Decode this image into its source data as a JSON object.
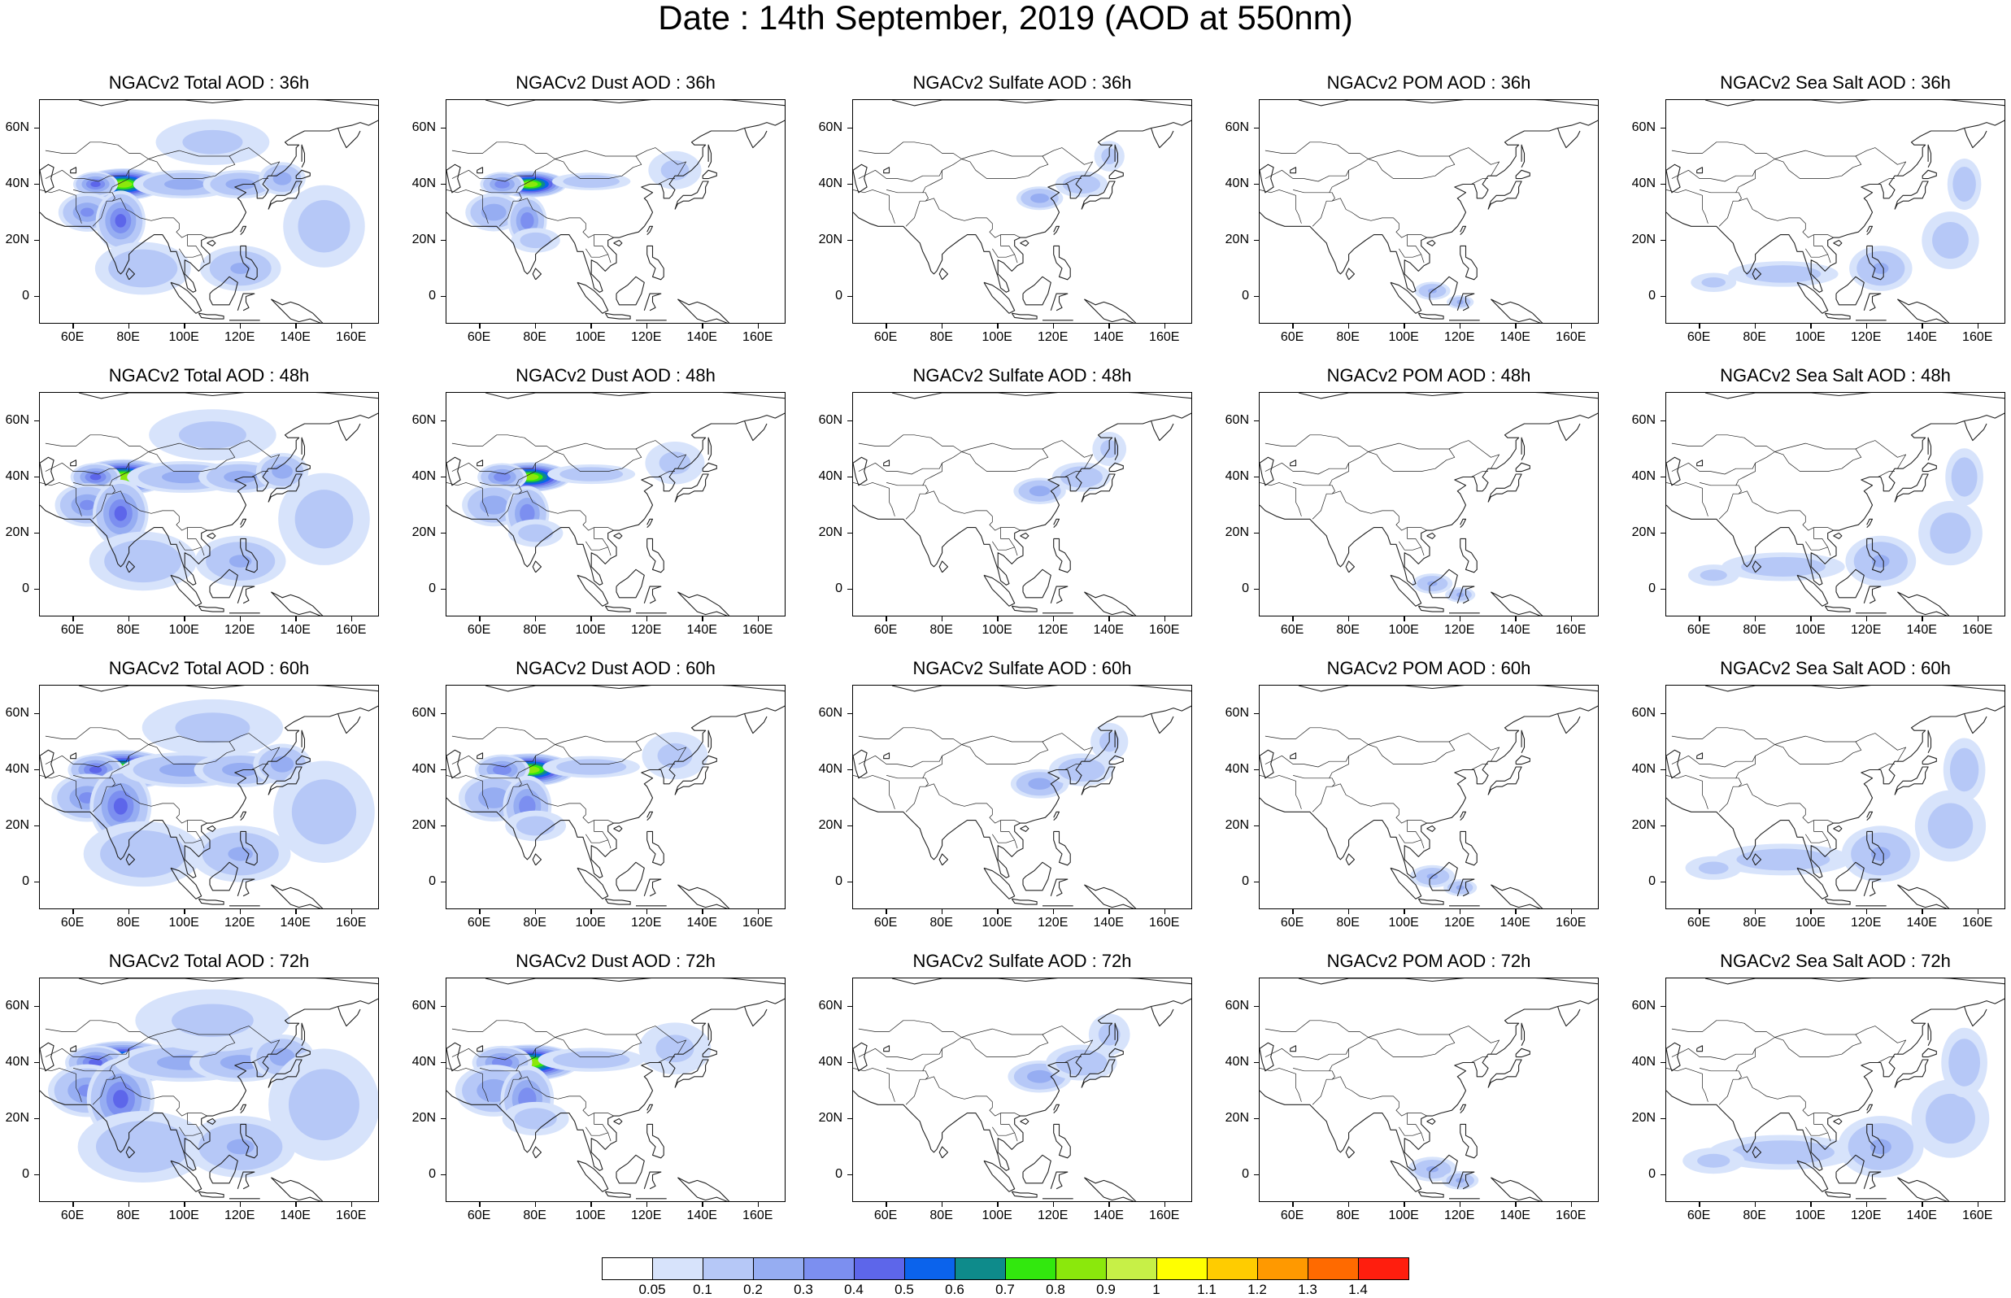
{
  "title": "Date : 14th September, 2019 (AOD at 550nm)",
  "lat_ticks": [
    "60N",
    "40N",
    "20N",
    "0"
  ],
  "lon_ticks": [
    "60E",
    "80E",
    "100E",
    "120E",
    "140E",
    "160E"
  ],
  "rows": [
    "36h",
    "48h",
    "60h",
    "72h"
  ],
  "columns": [
    "Total AOD",
    "Dust AOD",
    "Sulfate AOD",
    "POM AOD",
    "Sea Salt AOD"
  ],
  "panels": [
    [
      "NGACv2 Total AOD : 36h",
      "NGACv2 Dust AOD : 36h",
      "NGACv2 Sulfate AOD : 36h",
      "NGACv2 POM AOD : 36h",
      "NGACv2 Sea Salt AOD : 36h"
    ],
    [
      "NGACv2 Total AOD : 48h",
      "NGACv2 Dust AOD : 48h",
      "NGACv2 Sulfate AOD : 48h",
      "NGACv2 POM AOD : 48h",
      "NGACv2 Sea Salt AOD : 48h"
    ],
    [
      "NGACv2 Total AOD : 60h",
      "NGACv2 Dust AOD : 60h",
      "NGACv2 Sulfate AOD : 60h",
      "NGACv2 POM AOD : 60h",
      "NGACv2 Sea Salt AOD : 60h"
    ],
    [
      "NGACv2 Total AOD : 72h",
      "NGACv2 Dust AOD : 72h",
      "NGACv2 Sulfate AOD : 72h",
      "NGACv2 POM AOD : 72h",
      "NGACv2 Sea Salt  AOD : 72h"
    ]
  ],
  "map_extent": {
    "lon_range": [
      48,
      170
    ],
    "lat_range": [
      -10,
      70
    ]
  },
  "colorbar": {
    "labels": [
      "0.05",
      "0.1",
      "0.2",
      "0.3",
      "0.4",
      "0.5",
      "0.6",
      "0.7",
      "0.8",
      "0.9",
      "1",
      "1.1",
      "1.2",
      "1.3",
      "1.4"
    ],
    "colors": [
      "#ffffff",
      "#d7e3fb",
      "#b6c8f7",
      "#96adf2",
      "#7c8ff0",
      "#5d66ea",
      "#0b63ec",
      "#0e8b8b",
      "#32e80e",
      "#8be80c",
      "#c7f047",
      "#ffff00",
      "#ffcc00",
      "#ff9900",
      "#ff6a00",
      "#ff1e0e"
    ]
  }
}
